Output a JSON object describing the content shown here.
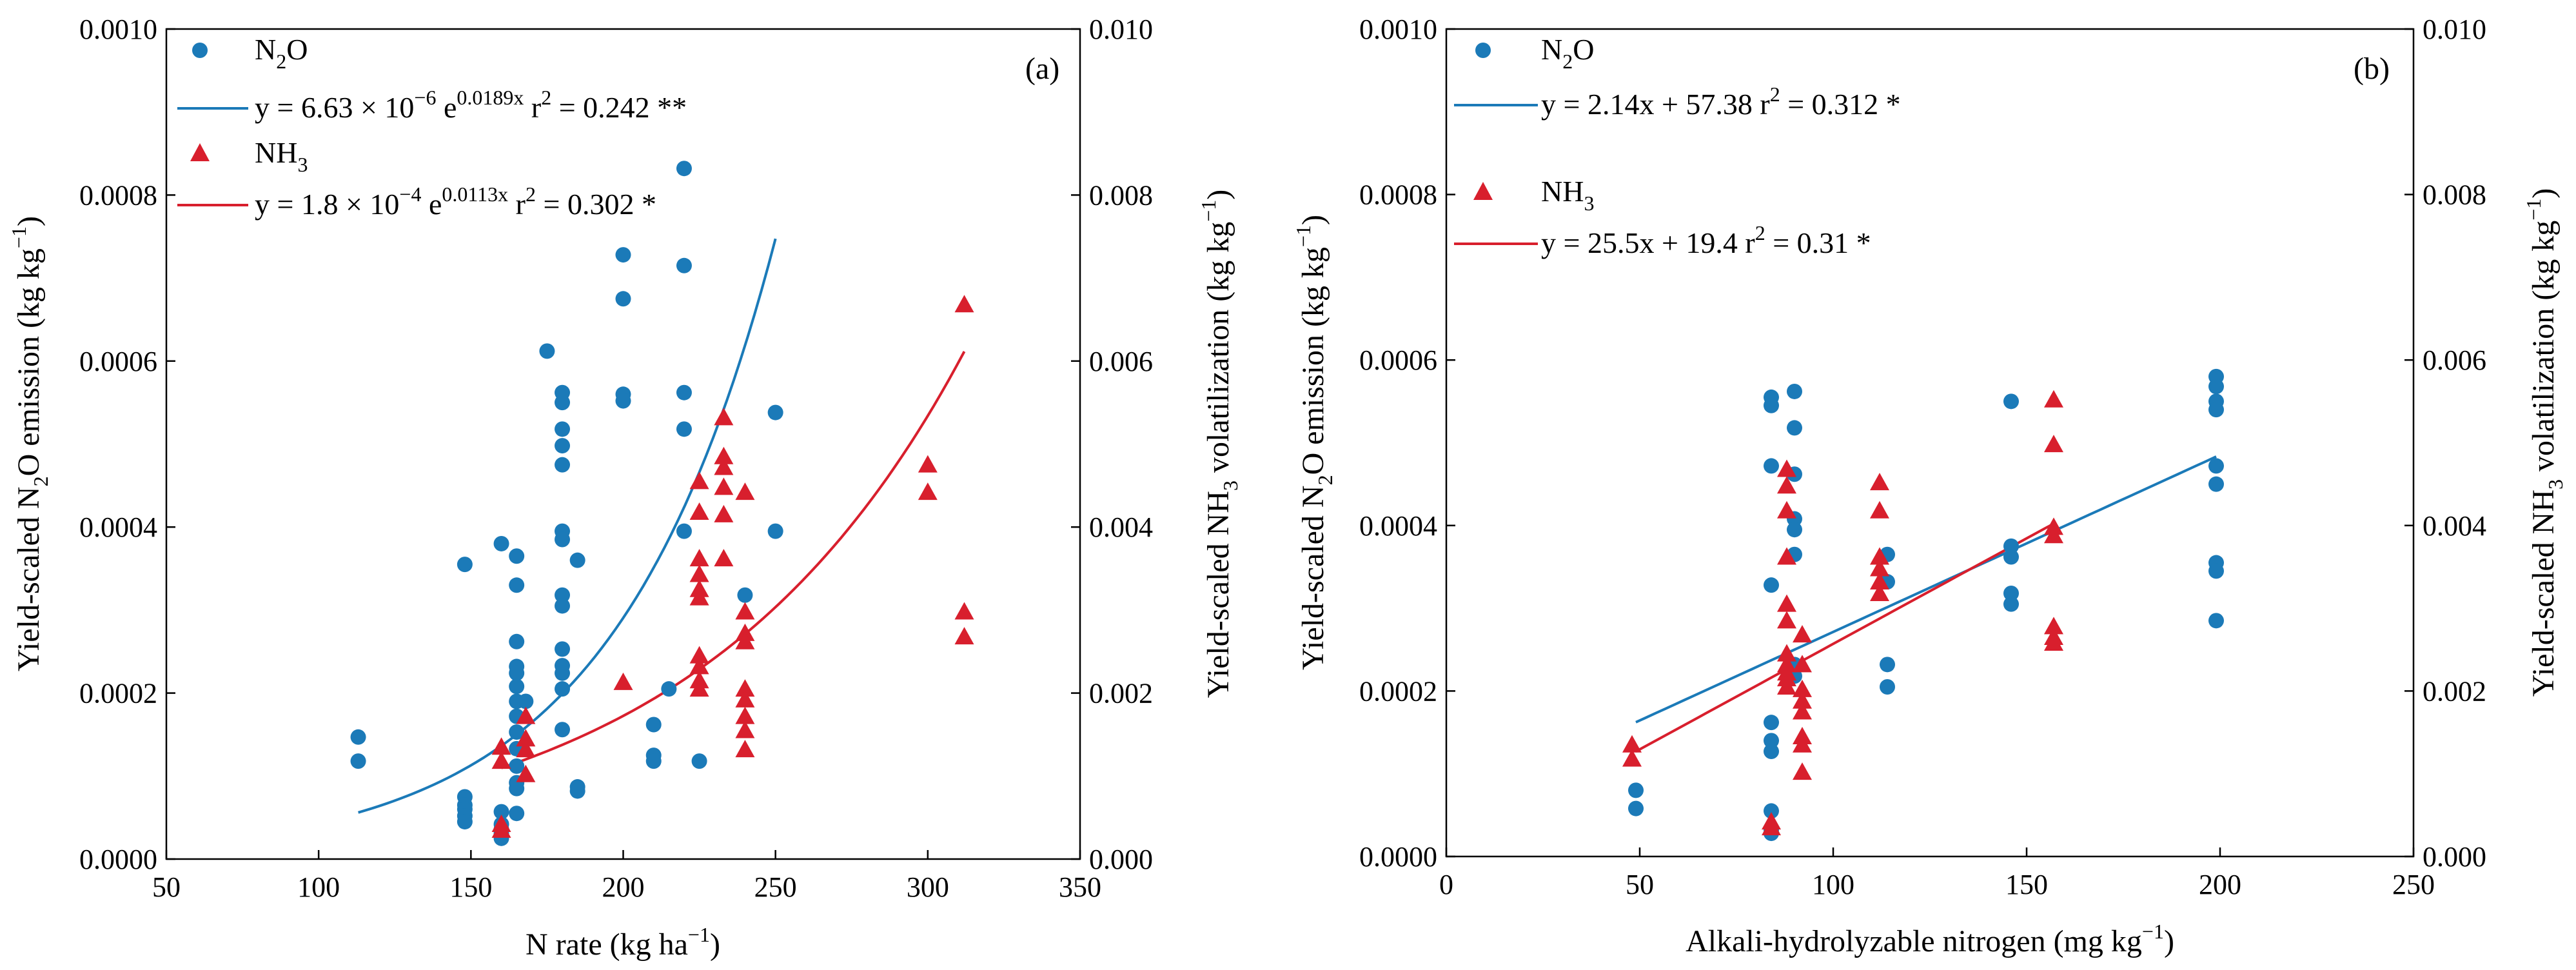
{
  "chart_data": [
    {
      "type": "scatter",
      "panel_label": "(a)",
      "xlabel": "N rate (kg ha",
      "xlabel_sup": "−1",
      "xlabel_close": ")",
      "ylabel_left": {
        "pre": "Yield-scaled N",
        "sub": "2",
        "mid": "O emission (kg kg",
        "sup": "−1",
        "post": ")"
      },
      "ylabel_right": {
        "pre": "Yield-scaled NH",
        "sub": "3",
        "mid": " volatilization (kg kg",
        "sup": "−1",
        "post": ")"
      },
      "xlim": [
        50,
        350
      ],
      "xticks": [
        "50",
        "100",
        "150",
        "200",
        "250",
        "300",
        "350"
      ],
      "ylim_left": [
        0,
        0.001
      ],
      "yticks_left": [
        "0.0000",
        "0.0002",
        "0.0004",
        "0.0006",
        "0.0008",
        "0.0010"
      ],
      "ylim_right": [
        0,
        0.01
      ],
      "yticks_right": [
        "0.000",
        "0.002",
        "0.004",
        "0.006",
        "0.008",
        "0.010"
      ],
      "legend": {
        "n2o": {
          "pre": "N",
          "sub": "2",
          "post": "O"
        },
        "n2o_fit": {
          "pre": "y = 6.63 × 10",
          "sup1": "−6",
          "mid": " e",
          "sup2": "0.0189x",
          "post": "  r",
          "sup3": "2",
          "tail": " = 0.242  **"
        },
        "nh3": {
          "pre": "NH",
          "sub": "3"
        },
        "nh3_fit": {
          "pre": "y = 1.8 × 10",
          "sup1": "−4",
          "mid": " e",
          "sup2": "0.0113x",
          "post": "  r",
          "sup3": "2",
          "tail": " = 0.302  *"
        }
      },
      "series": [
        {
          "name": "N2O",
          "axis": "left",
          "marker": "circle",
          "color": "#1b7ab8",
          "points": [
            [
              113,
              0.000147
            ],
            [
              113,
              0.000118
            ],
            [
              148,
              0.000355
            ],
            [
              148,
              7.5e-05
            ],
            [
              148,
              6.5e-05
            ],
            [
              148,
              6e-05
            ],
            [
              148,
              5.2e-05
            ],
            [
              148,
              4.5e-05
            ],
            [
              160,
              0.00038
            ],
            [
              160,
              5.7e-05
            ],
            [
              160,
              4.2e-05
            ],
            [
              160,
              3.6e-05
            ],
            [
              160,
              3.1e-05
            ],
            [
              160,
              2.5e-05
            ],
            [
              165,
              0.000365
            ],
            [
              165,
              0.00033
            ],
            [
              165,
              0.000262
            ],
            [
              165,
              0.000232
            ],
            [
              165,
              0.000224
            ],
            [
              165,
              0.000208
            ],
            [
              165,
              0.00019
            ],
            [
              165,
              0.000172
            ],
            [
              165,
              0.000153
            ],
            [
              165,
              0.000133
            ],
            [
              165,
              0.000112
            ],
            [
              165,
              9.2e-05
            ],
            [
              165,
              8.5e-05
            ],
            [
              165,
              5.5e-05
            ],
            [
              168,
              0.00019
            ],
            [
              175,
              0.000612
            ],
            [
              180,
              0.000562
            ],
            [
              180,
              0.00055
            ],
            [
              180,
              0.000518
            ],
            [
              180,
              0.000498
            ],
            [
              180,
              0.000475
            ],
            [
              180,
              0.000395
            ],
            [
              180,
              0.000385
            ],
            [
              180,
              0.000318
            ],
            [
              180,
              0.000305
            ],
            [
              180,
              0.000253
            ],
            [
              180,
              0.000233
            ],
            [
              180,
              0.000224
            ],
            [
              180,
              0.000205
            ],
            [
              180,
              0.000156
            ],
            [
              185,
              0.00036
            ],
            [
              185,
              8.7e-05
            ],
            [
              185,
              8.2e-05
            ],
            [
              200,
              0.000728
            ],
            [
              200,
              0.000675
            ],
            [
              200,
              0.00056
            ],
            [
              200,
              0.000552
            ],
            [
              210,
              0.000162
            ],
            [
              210,
              0.000125
            ],
            [
              210,
              0.000118
            ],
            [
              215,
              0.000205
            ],
            [
              220,
              0.000832
            ],
            [
              220,
              0.000715
            ],
            [
              220,
              0.000562
            ],
            [
              220,
              0.000518
            ],
            [
              220,
              0.000395
            ],
            [
              225,
              0.000118
            ],
            [
              240,
              0.000318
            ],
            [
              250,
              0.000538
            ],
            [
              250,
              0.000395
            ]
          ]
        },
        {
          "name": "NH3",
          "axis": "right",
          "marker": "triangle",
          "color": "#d81f2d",
          "points": [
            [
              160,
              0.00135
            ],
            [
              160,
              0.00118
            ],
            [
              160,
              0.00042
            ],
            [
              160,
              0.00035
            ],
            [
              168,
              0.00172
            ],
            [
              168,
              0.00145
            ],
            [
              168,
              0.00132
            ],
            [
              168,
              0.00102
            ],
            [
              200,
              0.00213
            ],
            [
              225,
              0.00455
            ],
            [
              225,
              0.00418
            ],
            [
              225,
              0.00362
            ],
            [
              225,
              0.00343
            ],
            [
              225,
              0.00325
            ],
            [
              225,
              0.00315
            ],
            [
              225,
              0.00245
            ],
            [
              225,
              0.00232
            ],
            [
              225,
              0.00215
            ],
            [
              225,
              0.00205
            ],
            [
              233,
              0.00532
            ],
            [
              233,
              0.00485
            ],
            [
              233,
              0.00472
            ],
            [
              233,
              0.00448
            ],
            [
              233,
              0.00415
            ],
            [
              233,
              0.00362
            ],
            [
              240,
              0.00442
            ],
            [
              240,
              0.00298
            ],
            [
              240,
              0.00272
            ],
            [
              240,
              0.00262
            ],
            [
              240,
              0.00205
            ],
            [
              240,
              0.00192
            ],
            [
              240,
              0.00172
            ],
            [
              240,
              0.00155
            ],
            [
              240,
              0.00132
            ],
            [
              300,
              0.00475
            ],
            [
              300,
              0.00442
            ],
            [
              312,
              0.00668
            ],
            [
              312,
              0.00298
            ],
            [
              312,
              0.00268
            ]
          ]
        }
      ],
      "fits": [
        {
          "series": "N2O",
          "axis": "left",
          "model": "exp",
          "a": 6.63e-06,
          "b": 0.0189,
          "x_range": [
            113,
            250
          ],
          "color": "#1b7ab8"
        },
        {
          "series": "NH3",
          "axis": "right",
          "model": "exp",
          "a": 0.00018,
          "b": 0.0113,
          "x_range": [
            160,
            312
          ],
          "color": "#d81f2d"
        }
      ]
    },
    {
      "type": "scatter",
      "panel_label": "(b)",
      "xlabel": "Alkali-hydrolyzable nitrogen (mg kg",
      "xlabel_sup": "−1",
      "xlabel_close": ")",
      "ylabel_left": {
        "pre": "Yield-scaled N",
        "sub": "2",
        "mid": "O emission (kg kg",
        "sup": "−1",
        "post": ")"
      },
      "ylabel_right": {
        "pre": "Yield-scaled NH",
        "sub": "3",
        "mid": " volatilization (kg kg",
        "sup": "−1",
        "post": ")"
      },
      "xlim": [
        0,
        250
      ],
      "xticks": [
        "0",
        "50",
        "100",
        "150",
        "200",
        "250"
      ],
      "ylim_left": [
        0,
        0.001
      ],
      "yticks_left": [
        "0.0000",
        "0.0002",
        "0.0004",
        "0.0006",
        "0.0008",
        "0.0010"
      ],
      "ylim_right": [
        0,
        0.01
      ],
      "yticks_right": [
        "0.000",
        "0.002",
        "0.004",
        "0.006",
        "0.008",
        "0.010"
      ],
      "legend": {
        "n2o": {
          "pre": "N",
          "sub": "2",
          "post": "O"
        },
        "n2o_fit": {
          "pre": "y = 2.14x + 57.38  r",
          "sup": "2",
          "post": " = 0.312  *"
        },
        "nh3": {
          "pre": "NH",
          "sub": "3"
        },
        "nh3_fit": {
          "pre": "y = 25.5x + 19.4   r",
          "sup": "2",
          "post": " = 0.31  *"
        }
      },
      "series": [
        {
          "name": "N2O",
          "axis": "left",
          "marker": "circle",
          "color": "#1b7ab8",
          "points": [
            [
              49,
              8e-05
            ],
            [
              49,
              5.8e-05
            ],
            [
              84,
              0.000555
            ],
            [
              84,
              0.000545
            ],
            [
              84,
              0.000472
            ],
            [
              84,
              0.000328
            ],
            [
              84,
              0.000162
            ],
            [
              84,
              0.00014
            ],
            [
              84,
              0.000127
            ],
            [
              84,
              5.5e-05
            ],
            [
              84,
              3.2e-05
            ],
            [
              84,
              2.8e-05
            ],
            [
              90,
              0.000562
            ],
            [
              90,
              0.000518
            ],
            [
              90,
              0.000462
            ],
            [
              90,
              0.000408
            ],
            [
              90,
              0.000395
            ],
            [
              90,
              0.000365
            ],
            [
              90,
              0.000232
            ],
            [
              90,
              0.000218
            ],
            [
              114,
              0.000365
            ],
            [
              114,
              0.000332
            ],
            [
              114,
              0.000232
            ],
            [
              114,
              0.000205
            ],
            [
              146,
              0.00055
            ],
            [
              146,
              0.000375
            ],
            [
              146,
              0.000362
            ],
            [
              146,
              0.000318
            ],
            [
              146,
              0.000305
            ],
            [
              199,
              0.00058
            ],
            [
              199,
              0.000568
            ],
            [
              199,
              0.00055
            ],
            [
              199,
              0.00054
            ],
            [
              199,
              0.000472
            ],
            [
              199,
              0.00045
            ],
            [
              199,
              0.000355
            ],
            [
              199,
              0.000345
            ],
            [
              199,
              0.000285
            ]
          ]
        },
        {
          "name": "NH3",
          "axis": "right",
          "marker": "triangle",
          "color": "#d81f2d",
          "points": [
            [
              48,
              0.00135
            ],
            [
              48,
              0.00118
            ],
            [
              84,
              0.00042
            ],
            [
              84,
              0.00035
            ],
            [
              88,
              0.00468
            ],
            [
              88,
              0.00448
            ],
            [
              88,
              0.00418
            ],
            [
              88,
              0.00362
            ],
            [
              88,
              0.00305
            ],
            [
              88,
              0.00285
            ],
            [
              88,
              0.00245
            ],
            [
              88,
              0.00232
            ],
            [
              88,
              0.00222
            ],
            [
              88,
              0.00215
            ],
            [
              88,
              0.00205
            ],
            [
              92,
              0.00268
            ],
            [
              92,
              0.00232
            ],
            [
              92,
              0.00202
            ],
            [
              92,
              0.00188
            ],
            [
              92,
              0.00175
            ],
            [
              92,
              0.00145
            ],
            [
              92,
              0.00135
            ],
            [
              92,
              0.00102
            ],
            [
              112,
              0.00452
            ],
            [
              112,
              0.00418
            ],
            [
              112,
              0.00362
            ],
            [
              112,
              0.00348
            ],
            [
              112,
              0.00332
            ],
            [
              112,
              0.00318
            ],
            [
              157,
              0.00552
            ],
            [
              157,
              0.00498
            ],
            [
              157,
              0.00398
            ],
            [
              157,
              0.00388
            ],
            [
              157,
              0.00278
            ],
            [
              157,
              0.00265
            ],
            [
              157,
              0.00258
            ]
          ]
        }
      ],
      "fits": [
        {
          "series": "N2O",
          "axis": "left",
          "model": "linear",
          "slope": 2.14,
          "intercept": 57.38,
          "y_scale": 1e-06,
          "x_range": [
            49,
            199
          ],
          "color": "#1b7ab8"
        },
        {
          "series": "NH3",
          "axis": "right",
          "model": "linear",
          "slope": 25.5,
          "intercept": 19.4,
          "y_scale": 1e-06,
          "x_range": [
            49,
            157
          ],
          "color": "#d81f2d"
        }
      ]
    }
  ]
}
